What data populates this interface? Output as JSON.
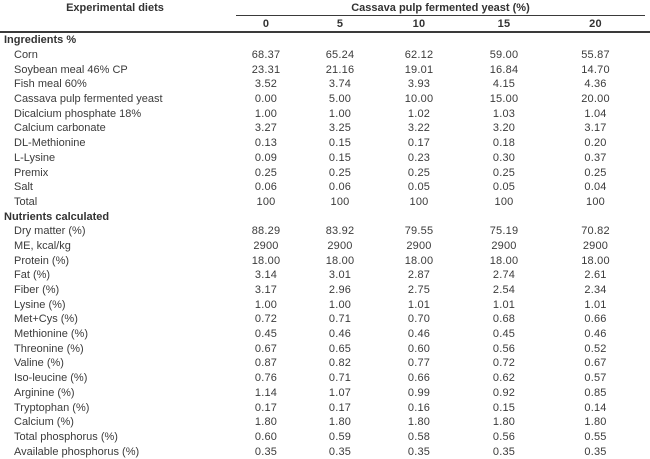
{
  "table": {
    "label_header": "Experimental diets",
    "span_header": "Cassava pulp fermented yeast (%)",
    "columns": [
      "0",
      "5",
      "10",
      "15",
      "20"
    ],
    "sections": [
      {
        "title": "Ingredients %",
        "rows": [
          {
            "label": "Corn",
            "values": [
              "68.37",
              "65.24",
              "62.12",
              "59.00",
              "55.87"
            ]
          },
          {
            "label": "Soybean meal 46% CP",
            "values": [
              "23.31",
              "21.16",
              "19.01",
              "16.84",
              "14.70"
            ]
          },
          {
            "label": "Fish meal 60%",
            "values": [
              "3.52",
              "3.74",
              "3.93",
              "4.15",
              "4.36"
            ]
          },
          {
            "label": "Cassava pulp fermented yeast",
            "values": [
              "0.00",
              "5.00",
              "10.00",
              "15.00",
              "20.00"
            ]
          },
          {
            "label": "Dicalcium phosphate 18%",
            "values": [
              "1.00",
              "1.00",
              "1.02",
              "1.03",
              "1.04"
            ]
          },
          {
            "label": "Calcium carbonate",
            "values": [
              "3.27",
              "3.25",
              "3.22",
              "3.20",
              "3.17"
            ]
          },
          {
            "label": "DL-Methionine",
            "values": [
              "0.13",
              "0.15",
              "0.17",
              "0.18",
              "0.20"
            ]
          },
          {
            "label": "L-Lysine",
            "values": [
              "0.09",
              "0.15",
              "0.23",
              "0.30",
              "0.37"
            ]
          },
          {
            "label": "Premix",
            "values": [
              "0.25",
              "0.25",
              "0.25",
              "0.25",
              "0.25"
            ]
          },
          {
            "label": "Salt",
            "values": [
              "0.06",
              "0.06",
              "0.05",
              "0.05",
              "0.04"
            ]
          },
          {
            "label": "Total",
            "values": [
              "100",
              "100",
              "100",
              "100",
              "100"
            ]
          }
        ]
      },
      {
        "title": "Nutrients calculated",
        "rows": [
          {
            "label": "Dry matter (%)",
            "values": [
              "88.29",
              "83.92",
              "79.55",
              "75.19",
              "70.82"
            ]
          },
          {
            "label": "ME, kcal/kg",
            "values": [
              "2900",
              "2900",
              "2900",
              "2900",
              "2900"
            ]
          },
          {
            "label": "Protein (%)",
            "values": [
              "18.00",
              "18.00",
              "18.00",
              "18.00",
              "18.00"
            ]
          },
          {
            "label": "Fat (%)",
            "values": [
              "3.14",
              "3.01",
              "2.87",
              "2.74",
              "2.61"
            ]
          },
          {
            "label": "Fiber (%)",
            "values": [
              "3.17",
              "2.96",
              "2.75",
              "2.54",
              "2.34"
            ]
          },
          {
            "label": "Lysine (%)",
            "values": [
              "1.00",
              "1.00",
              "1.01",
              "1.01",
              "1.01"
            ]
          },
          {
            "label": "Met+Cys (%)",
            "values": [
              "0.72",
              "0.71",
              "0.70",
              "0.68",
              "0.66"
            ]
          },
          {
            "label": "Methionine (%)",
            "values": [
              "0.45",
              "0.46",
              "0.46",
              "0.45",
              "0.46"
            ]
          },
          {
            "label": "Threonine (%)",
            "values": [
              "0.67",
              "0.65",
              "0.60",
              "0.56",
              "0.52"
            ]
          },
          {
            "label": "Valine (%)",
            "values": [
              "0.87",
              "0.82",
              "0.77",
              "0.72",
              "0.67"
            ]
          },
          {
            "label": "Iso-leucine (%)",
            "values": [
              "0.76",
              "0.71",
              "0.66",
              "0.62",
              "0.57"
            ]
          },
          {
            "label": "Arginine (%)",
            "values": [
              "1.14",
              "1.07",
              "0.99",
              "0.92",
              "0.85"
            ]
          },
          {
            "label": "Tryptophan (%)",
            "values": [
              "0.17",
              "0.17",
              "0.16",
              "0.15",
              "0.14"
            ]
          },
          {
            "label": "Calcium (%)",
            "values": [
              "1.80",
              "1.80",
              "1.80",
              "1.80",
              "1.80"
            ]
          },
          {
            "label": "Total phosphorus (%)",
            "values": [
              "0.60",
              "0.59",
              "0.58",
              "0.56",
              "0.55"
            ]
          },
          {
            "label": "Available phosphorus (%)",
            "values": [
              "0.35",
              "0.35",
              "0.35",
              "0.35",
              "0.35"
            ]
          }
        ]
      }
    ]
  }
}
